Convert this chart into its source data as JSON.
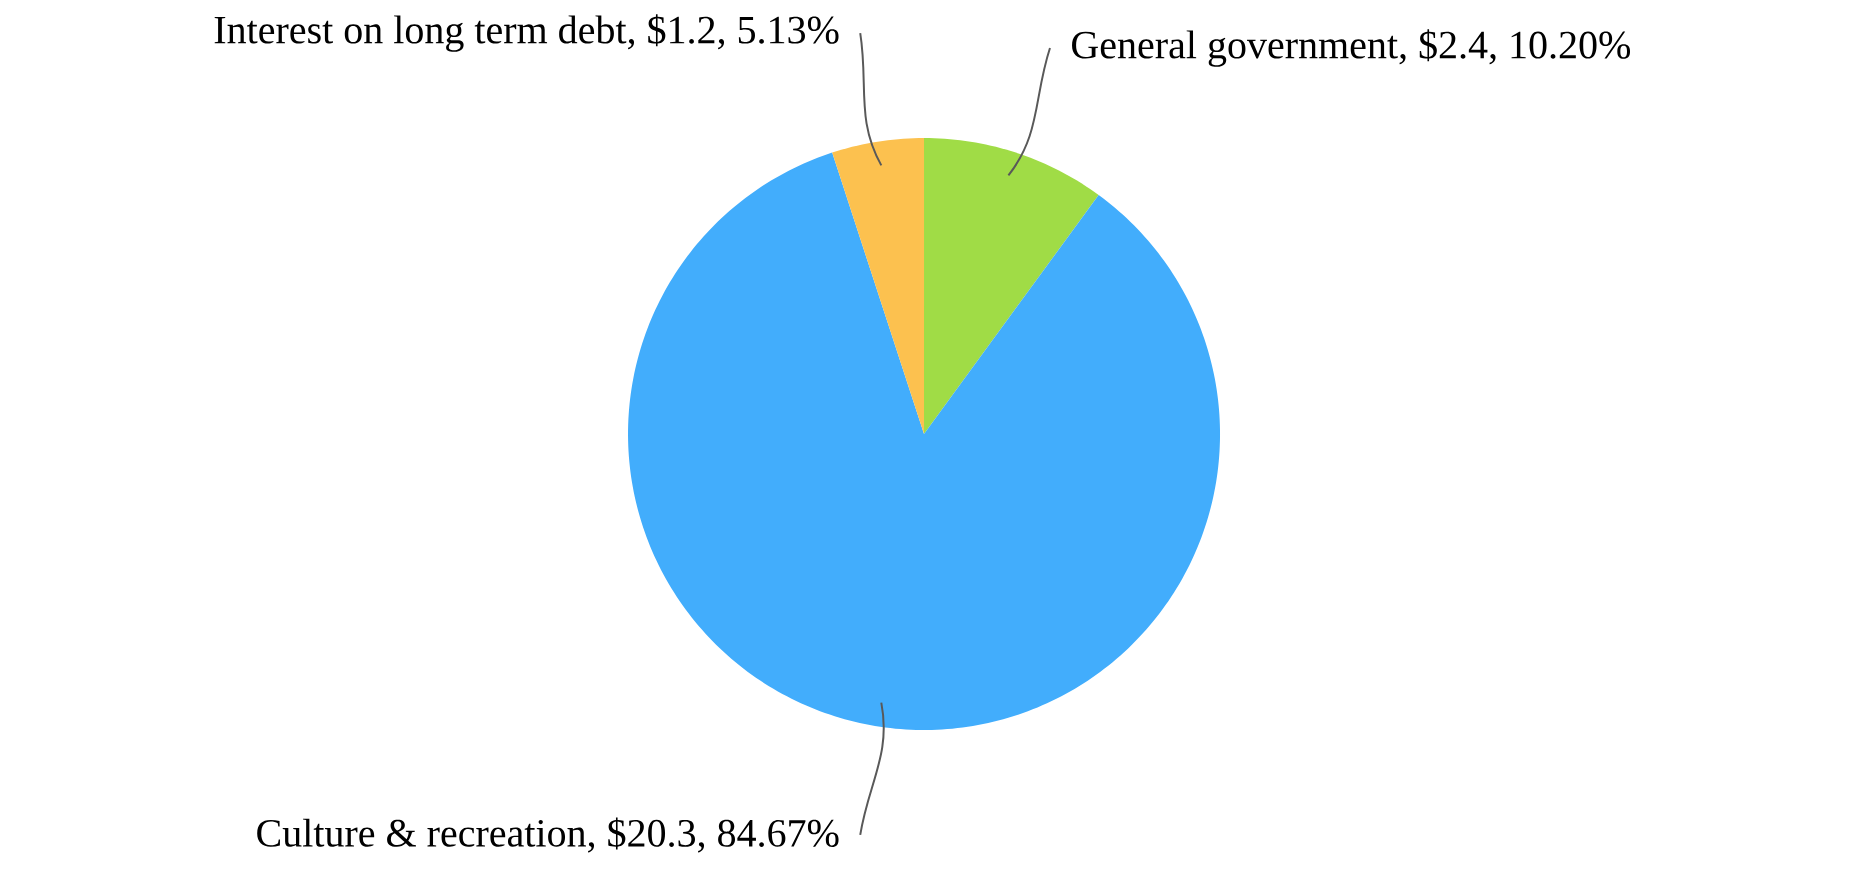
{
  "chart_data": {
    "type": "pie",
    "categories": [
      "General government, $2.4, 10.20%",
      "Culture & recreation, $20.3, 84.67%",
      "Interest on long term debt, $1.2, 5.13%"
    ],
    "values": [
      2.4,
      20.3,
      1.2
    ],
    "colors": [
      "#a0dc46",
      "#42adfc",
      "#fcc14f"
    ]
  }
}
